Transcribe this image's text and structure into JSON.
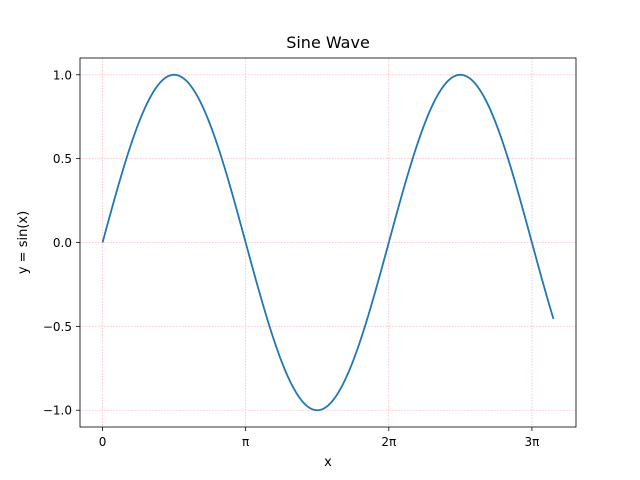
{
  "chart_data": {
    "type": "line",
    "title": "Sine Wave",
    "xlabel": "x",
    "ylabel": "y = sin(x)",
    "xlim": [
      -0.4949,
      10.3926
    ],
    "ylim": [
      -1.1,
      1.1
    ],
    "grid": true,
    "grid_color": "#ffb6c1",
    "x_ticks": [
      {
        "value": 0,
        "label": "0"
      },
      {
        "value": 3.14159,
        "label": "π"
      },
      {
        "value": 6.28319,
        "label": "2π"
      },
      {
        "value": 9.42478,
        "label": "3π"
      }
    ],
    "y_ticks": [
      {
        "value": -1.0,
        "label": "−1.0"
      },
      {
        "value": -0.5,
        "label": "−0.5"
      },
      {
        "value": 0.0,
        "label": "0.0"
      },
      {
        "value": 0.5,
        "label": "0.5"
      },
      {
        "value": 1.0,
        "label": "1.0"
      }
    ],
    "series": [
      {
        "color": "#1f77b4",
        "function": "sin",
        "x_range": [
          0,
          9.8977
        ]
      }
    ]
  }
}
